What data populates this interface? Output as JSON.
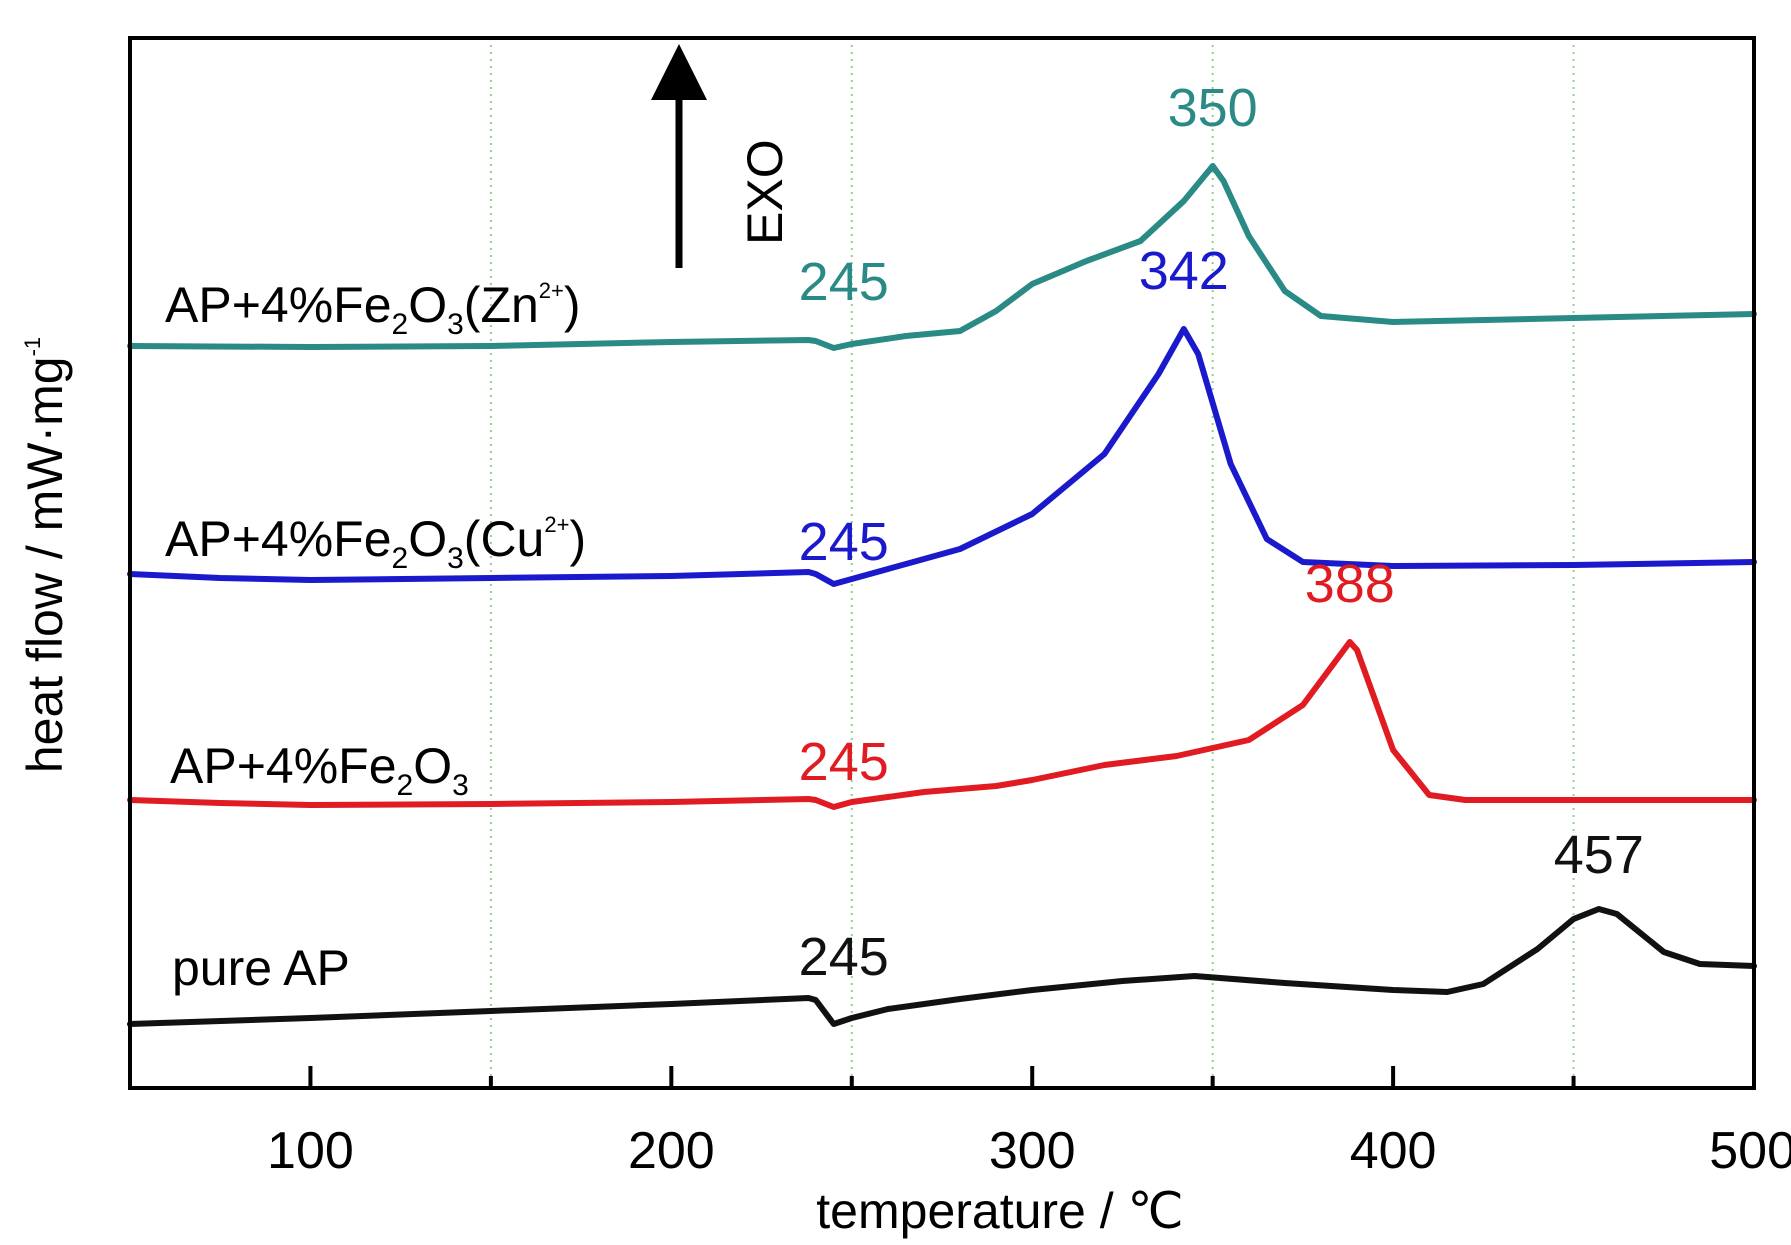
{
  "chart_data": {
    "type": "line",
    "xlabel": "temperature / ℃",
    "ylabel": "heat flow / mW·mg",
    "ylabel_sup": "-1",
    "xlim": [
      50,
      500
    ],
    "xticks": [
      100,
      200,
      300,
      400,
      500
    ],
    "x_minor_ticks": [
      150,
      250,
      350,
      450
    ],
    "grid_x": [
      150,
      250,
      350,
      450
    ],
    "exo_label": "EXO",
    "series": [
      {
        "name": "AP+4%Fe2O3(Zn2+)",
        "label_parts": {
          "a": "AP+4%Fe",
          "b": "2",
          "c": "O",
          "d": "3",
          "e": "(Zn",
          "f": "2+",
          "g": ")"
        },
        "color": "#2a8a86",
        "low_temp_peak": "245",
        "high_temp_peak": "350",
        "points": [
          [
            50,
            0.0
          ],
          [
            100,
            -0.01
          ],
          [
            150,
            0.0
          ],
          [
            200,
            0.04
          ],
          [
            238,
            0.06
          ],
          [
            240,
            0.05
          ],
          [
            245,
            -0.02
          ],
          [
            250,
            0.02
          ],
          [
            265,
            0.1
          ],
          [
            280,
            0.15
          ],
          [
            290,
            0.35
          ],
          [
            300,
            0.62
          ],
          [
            315,
            0.85
          ],
          [
            330,
            1.05
          ],
          [
            342,
            1.45
          ],
          [
            350,
            1.8
          ],
          [
            353,
            1.65
          ],
          [
            360,
            1.1
          ],
          [
            370,
            0.55
          ],
          [
            380,
            0.3
          ],
          [
            400,
            0.24
          ],
          [
            450,
            0.28
          ],
          [
            500,
            0.32
          ]
        ]
      },
      {
        "name": "AP+4%Fe2O3(Cu2+)",
        "label_parts": {
          "a": "AP+4%Fe",
          "b": "2",
          "c": "O",
          "d": "3",
          "e": "(Cu",
          "f": "2+",
          "g": ")"
        },
        "color": "#1a1acc",
        "low_temp_peak": "245",
        "high_temp_peak": "342",
        "points": [
          [
            50,
            0.0
          ],
          [
            75,
            -0.04
          ],
          [
            100,
            -0.06
          ],
          [
            150,
            -0.04
          ],
          [
            200,
            -0.02
          ],
          [
            238,
            0.02
          ],
          [
            240,
            0.0
          ],
          [
            245,
            -0.1
          ],
          [
            250,
            -0.05
          ],
          [
            260,
            0.05
          ],
          [
            280,
            0.25
          ],
          [
            300,
            0.6
          ],
          [
            320,
            1.2
          ],
          [
            335,
            2.0
          ],
          [
            342,
            2.45
          ],
          [
            346,
            2.2
          ],
          [
            355,
            1.1
          ],
          [
            365,
            0.35
          ],
          [
            375,
            0.12
          ],
          [
            400,
            0.08
          ],
          [
            450,
            0.09
          ],
          [
            500,
            0.12
          ]
        ]
      },
      {
        "name": "AP+4%Fe2O3",
        "label_parts": {
          "a": "AP+4%Fe",
          "b": "2",
          "c": "O",
          "d": "3",
          "e": "",
          "f": "",
          "g": ""
        },
        "color": "#e01c22",
        "low_temp_peak": "245",
        "high_temp_peak": "388",
        "points": [
          [
            50,
            0.0
          ],
          [
            75,
            -0.03
          ],
          [
            100,
            -0.05
          ],
          [
            150,
            -0.04
          ],
          [
            200,
            -0.02
          ],
          [
            238,
            0.01
          ],
          [
            240,
            0.0
          ],
          [
            245,
            -0.07
          ],
          [
            250,
            -0.02
          ],
          [
            270,
            0.08
          ],
          [
            290,
            0.14
          ],
          [
            300,
            0.2
          ],
          [
            320,
            0.35
          ],
          [
            340,
            0.44
          ],
          [
            360,
            0.6
          ],
          [
            375,
            0.95
          ],
          [
            388,
            1.58
          ],
          [
            390,
            1.5
          ],
          [
            400,
            0.5
          ],
          [
            410,
            0.05
          ],
          [
            420,
            0.0
          ],
          [
            450,
            0.0
          ],
          [
            500,
            0.0
          ]
        ]
      },
      {
        "name": "pure AP",
        "label_parts": {
          "a": "pure AP",
          "b": "",
          "c": "",
          "d": "",
          "e": "",
          "f": "",
          "g": ""
        },
        "color": "#111111",
        "low_temp_peak": "245",
        "high_temp_peak": "457",
        "points": [
          [
            50,
            0.0
          ],
          [
            100,
            0.06
          ],
          [
            150,
            0.13
          ],
          [
            200,
            0.2
          ],
          [
            238,
            0.26
          ],
          [
            240,
            0.24
          ],
          [
            245,
            0.0
          ],
          [
            250,
            0.06
          ],
          [
            260,
            0.15
          ],
          [
            280,
            0.25
          ],
          [
            300,
            0.34
          ],
          [
            325,
            0.43
          ],
          [
            345,
            0.48
          ],
          [
            370,
            0.41
          ],
          [
            400,
            0.34
          ],
          [
            415,
            0.32
          ],
          [
            425,
            0.4
          ],
          [
            440,
            0.75
          ],
          [
            450,
            1.05
          ],
          [
            457,
            1.15
          ],
          [
            462,
            1.1
          ],
          [
            475,
            0.72
          ],
          [
            485,
            0.6
          ],
          [
            500,
            0.58
          ]
        ]
      }
    ]
  }
}
